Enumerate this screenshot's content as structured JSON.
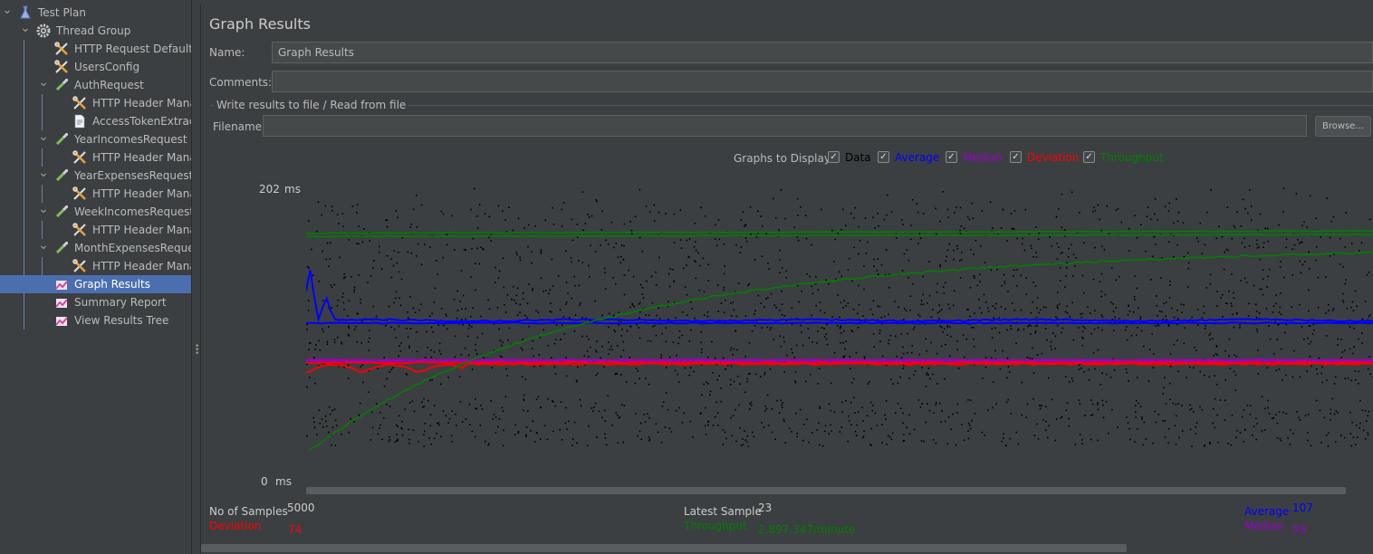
{
  "tree": {
    "items": [
      {
        "label": "Test Plan",
        "icon": "flask-icon"
      },
      {
        "label": "Thread Group",
        "icon": "gear-icon"
      },
      {
        "label": "HTTP Request Defaults",
        "icon": "wrench-icon"
      },
      {
        "label": "UsersConfig",
        "icon": "wrench-icon"
      },
      {
        "label": "AuthRequest",
        "icon": "pipette-icon"
      },
      {
        "label": "HTTP Header Manag",
        "icon": "wrench-icon"
      },
      {
        "label": "AccessTokenExtracto",
        "icon": "document-icon"
      },
      {
        "label": "YearIncomesRequest",
        "icon": "pipette-icon"
      },
      {
        "label": "HTTP Header Manag",
        "icon": "wrench-icon"
      },
      {
        "label": "YearExpensesRequest",
        "icon": "pipette-icon"
      },
      {
        "label": "HTTP Header Manag",
        "icon": "wrench-icon"
      },
      {
        "label": "WeekIncomesRequest",
        "icon": "pipette-icon"
      },
      {
        "label": "HTTP Header Manag",
        "icon": "wrench-icon"
      },
      {
        "label": "MonthExpensesRequest",
        "icon": "pipette-icon"
      },
      {
        "label": "HTTP Header Manag",
        "icon": "wrench-icon"
      },
      {
        "label": "Graph Results",
        "icon": "graph-icon"
      },
      {
        "label": "Summary Report",
        "icon": "graph-icon"
      },
      {
        "label": "View Results Tree",
        "icon": "graph-icon"
      }
    ]
  },
  "panel": {
    "title": "Graph Results",
    "name_label": "Name:",
    "name_value": "Graph Results",
    "comments_label": "Comments:",
    "comments_value": "",
    "file_section_label": "Write results to file / Read from file",
    "filename_label": "Filename",
    "filename_value": "",
    "browse_label": "Browse...",
    "graphs_label": "Graphs to Display",
    "checkboxes": [
      {
        "label": "Data",
        "color": "#000000",
        "checked": true
      },
      {
        "label": "Average",
        "color": "#0000ff",
        "checked": true
      },
      {
        "label": "Median",
        "color": "#9900cc",
        "checked": true
      },
      {
        "label": "Deviation",
        "color": "#ff0000",
        "checked": true
      },
      {
        "label": "Throughput",
        "color": "#008000",
        "checked": true
      }
    ]
  },
  "chart_data": {
    "type": "scatter",
    "y_max_label": "202",
    "y_min_label": "0",
    "y_unit": "ms",
    "ylim": [
      0,
      202
    ],
    "samples_total": 5000,
    "series": [
      {
        "name": "Data",
        "color": "#000000"
      },
      {
        "name": "Average",
        "color": "#0000ff",
        "final": 107
      },
      {
        "name": "Median",
        "color": "#9900cc"
      },
      {
        "name": "Deviation",
        "color": "#ff0000",
        "final": 74
      },
      {
        "name": "Throughput",
        "color": "#008000"
      }
    ]
  },
  "stats": {
    "samples_label": "No of Samples",
    "samples_value": "5000",
    "deviation_label": "Deviation",
    "deviation_value": "74",
    "latest_label": "Latest Sample",
    "latest_value": "23",
    "throughput_label": "Throughput",
    "throughput_value": "2,897.347/minute",
    "average_label": "Average",
    "average_value": "107",
    "median_label": "Median",
    "median_value": "93"
  }
}
